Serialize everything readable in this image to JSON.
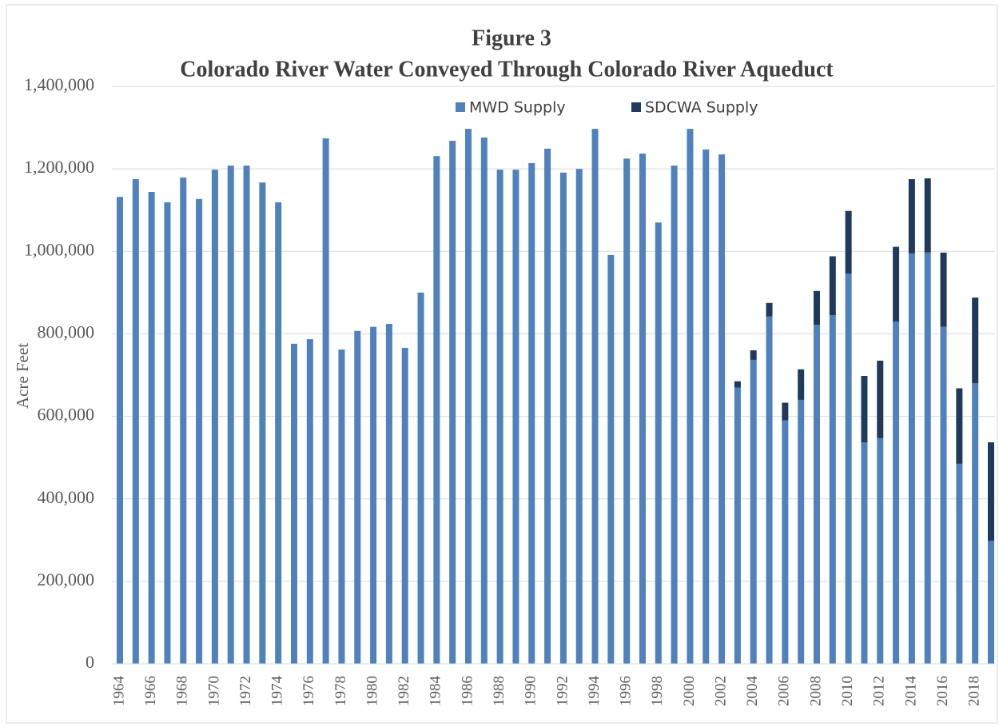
{
  "chart_data": {
    "type": "stacked_bar",
    "title": "Figure 3",
    "subtitle": "Colorado River Water Conveyed Through Colorado River Aqueduct",
    "y_label": "Acre Feet",
    "categories": [
      "1964",
      null,
      "1966",
      null,
      "1968",
      null,
      "1970",
      null,
      "1972",
      null,
      "1974",
      null,
      "1976",
      null,
      "1978",
      null,
      "1980",
      null,
      "1982",
      null,
      "1984",
      null,
      "1986",
      null,
      "1988",
      null,
      "1990",
      null,
      "1992",
      null,
      "1994",
      null,
      "1996",
      null,
      "1998",
      null,
      "2000",
      null,
      "2002",
      null,
      "2004",
      null,
      "2006",
      null,
      "2008",
      null,
      "2010",
      null,
      "2012",
      null,
      "2014",
      null,
      "2016",
      null,
      "2018",
      null
    ],
    "series": [
      {
        "name": "MWD Supply",
        "color": "#4f81bd",
        "values": [
          1132000,
          1175000,
          1144000,
          1119000,
          1179000,
          1127000,
          1198000,
          1208000,
          1208000,
          1167000,
          1119000,
          776000,
          787000,
          1274000,
          762000,
          807000,
          817000,
          824000,
          766000,
          900000,
          1231000,
          1268000,
          1297000,
          1276000,
          1198000,
          1198000,
          1214000,
          1249000,
          1191000,
          1200000,
          1297000,
          991000,
          1225000,
          1237000,
          1070000,
          1208000,
          1297000,
          1247000,
          1235000,
          670000,
          737000,
          842000,
          590000,
          640000,
          822000,
          845000,
          946000,
          537000,
          547000,
          830000,
          995000,
          997000,
          817000,
          485000,
          680000,
          298000
        ]
      },
      {
        "name": "SDCWA Supply",
        "color": "#1f3a5c",
        "values": [
          null,
          null,
          null,
          null,
          null,
          null,
          null,
          null,
          null,
          null,
          null,
          null,
          null,
          null,
          null,
          null,
          null,
          null,
          null,
          null,
          null,
          null,
          null,
          null,
          null,
          null,
          null,
          null,
          null,
          null,
          null,
          null,
          null,
          null,
          null,
          null,
          null,
          null,
          null,
          15000,
          23000,
          33000,
          43000,
          74000,
          82000,
          143000,
          152000,
          161000,
          188000,
          181000,
          180000,
          180000,
          180000,
          183000,
          208000,
          239000
        ]
      }
    ],
    "ylim": [
      0,
      1400000
    ],
    "yticks": [
      0,
      {
        "value": 200000,
        "label": "200,000"
      },
      {
        "value": 400000,
        "label": "400,000"
      },
      {
        "value": 600000,
        "label": "600,000"
      },
      {
        "value": 800000,
        "label": "800,000"
      },
      {
        "value": 1000000,
        "label": "1,000,000"
      },
      {
        "value": 1200000,
        "label": "1,200,000"
      },
      {
        "value": 1400000,
        "label": "1,400,000"
      }
    ],
    "grid": true,
    "legend": "top"
  }
}
